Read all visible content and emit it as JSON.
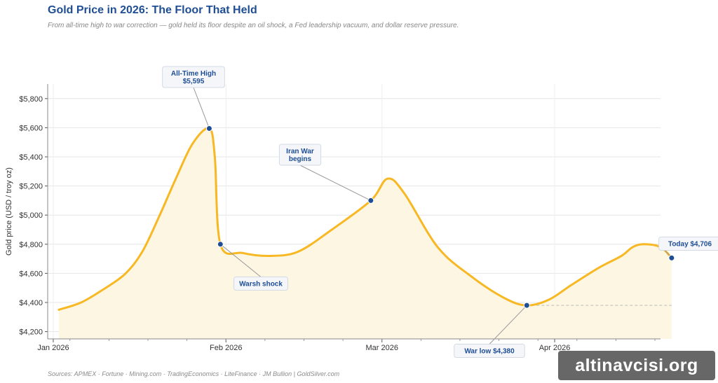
{
  "header": {
    "title": "Gold Price in 2026: The Floor That Held",
    "subtitle": "From all-time high to war correction — gold held its floor despite an oil shock, a Fed leadership vacuum, and dollar reserve pressure."
  },
  "footer": {
    "sources": "Sources: APMEX · Fortune · Mining.com · TradingEconomics · LiteFinance · JM Bullion  |  GoldSilver.com"
  },
  "watermark": "altinavcisi.org",
  "colors": {
    "line": "#f7b823",
    "fill": "#fdf6e3",
    "marker": "#1f4e94",
    "annotation_text": "#1f4e94"
  },
  "chart_data": {
    "type": "area",
    "title": "Gold Price in 2026: The Floor That Held",
    "ylabel": "Gold price  (USD / troy oz)",
    "xlabel": "",
    "ylim": [
      4150,
      5900
    ],
    "xlim": [
      "2025-12-31",
      "2026-04-20"
    ],
    "grid": true,
    "y_ticks": [
      4200,
      4400,
      4600,
      4800,
      5000,
      5200,
      5400,
      5600,
      5800
    ],
    "y_tick_labels": [
      "$4,200",
      "$4,400",
      "$4,600",
      "$4,800",
      "$5,000",
      "$5,200",
      "$5,400",
      "$5,600",
      "$5,800"
    ],
    "x_ticks": [
      {
        "date": "2026-01-01",
        "label": "Jan 2026"
      },
      {
        "date": "2026-02-01",
        "label": "Feb 2026"
      },
      {
        "date": "2026-03-01",
        "label": "Mar 2026"
      },
      {
        "date": "2026-04-01",
        "label": "Apr 2026"
      }
    ],
    "series": [
      {
        "points": [
          {
            "x": "2026-01-02",
            "y": 4350
          },
          {
            "x": "2026-01-06",
            "y": 4400
          },
          {
            "x": "2026-01-10",
            "y": 4490
          },
          {
            "x": "2026-01-14",
            "y": 4600
          },
          {
            "x": "2026-01-17",
            "y": 4750
          },
          {
            "x": "2026-01-20",
            "y": 4990
          },
          {
            "x": "2026-01-23",
            "y": 5250
          },
          {
            "x": "2026-01-26",
            "y": 5490
          },
          {
            "x": "2026-01-29",
            "y": 5595
          },
          {
            "x": "2026-01-30",
            "y": 5400
          },
          {
            "x": "2026-01-31",
            "y": 4800
          },
          {
            "x": "2026-02-04",
            "y": 4740
          },
          {
            "x": "2026-02-09",
            "y": 4720
          },
          {
            "x": "2026-02-14",
            "y": 4750
          },
          {
            "x": "2026-02-20",
            "y": 4900
          },
          {
            "x": "2026-02-27",
            "y": 5100
          },
          {
            "x": "2026-03-02",
            "y": 5250
          },
          {
            "x": "2026-03-05",
            "y": 5150
          },
          {
            "x": "2026-03-11",
            "y": 4780
          },
          {
            "x": "2026-03-17",
            "y": 4580
          },
          {
            "x": "2026-03-23",
            "y": 4430
          },
          {
            "x": "2026-03-27",
            "y": 4380
          },
          {
            "x": "2026-03-31",
            "y": 4420
          },
          {
            "x": "2026-04-04",
            "y": 4520
          },
          {
            "x": "2026-04-09",
            "y": 4640
          },
          {
            "x": "2026-04-13",
            "y": 4720
          },
          {
            "x": "2026-04-15",
            "y": 4780
          },
          {
            "x": "2026-04-17",
            "y": 4800
          },
          {
            "x": "2026-04-20",
            "y": 4780
          },
          {
            "x": "2026-04-22",
            "y": 4706
          }
        ]
      }
    ],
    "reference_line": {
      "y": 4380,
      "from": "2026-03-27",
      "to": "2026-04-22",
      "style": "dashed"
    },
    "annotations": [
      {
        "x": "2026-01-29",
        "y": 5595,
        "label_lines": [
          "All-Time High",
          "$5,595"
        ]
      },
      {
        "x": "2026-01-31",
        "y": 4800,
        "label_lines": [
          "Warsh shock"
        ]
      },
      {
        "x": "2026-02-27",
        "y": 5100,
        "label_lines": [
          "Iran War",
          "begins"
        ]
      },
      {
        "x": "2026-03-27",
        "y": 4380,
        "label_lines": [
          "War low  $4,380"
        ]
      },
      {
        "x": "2026-04-22",
        "y": 4706,
        "label_lines": [
          "Today  $4,706"
        ]
      }
    ]
  }
}
